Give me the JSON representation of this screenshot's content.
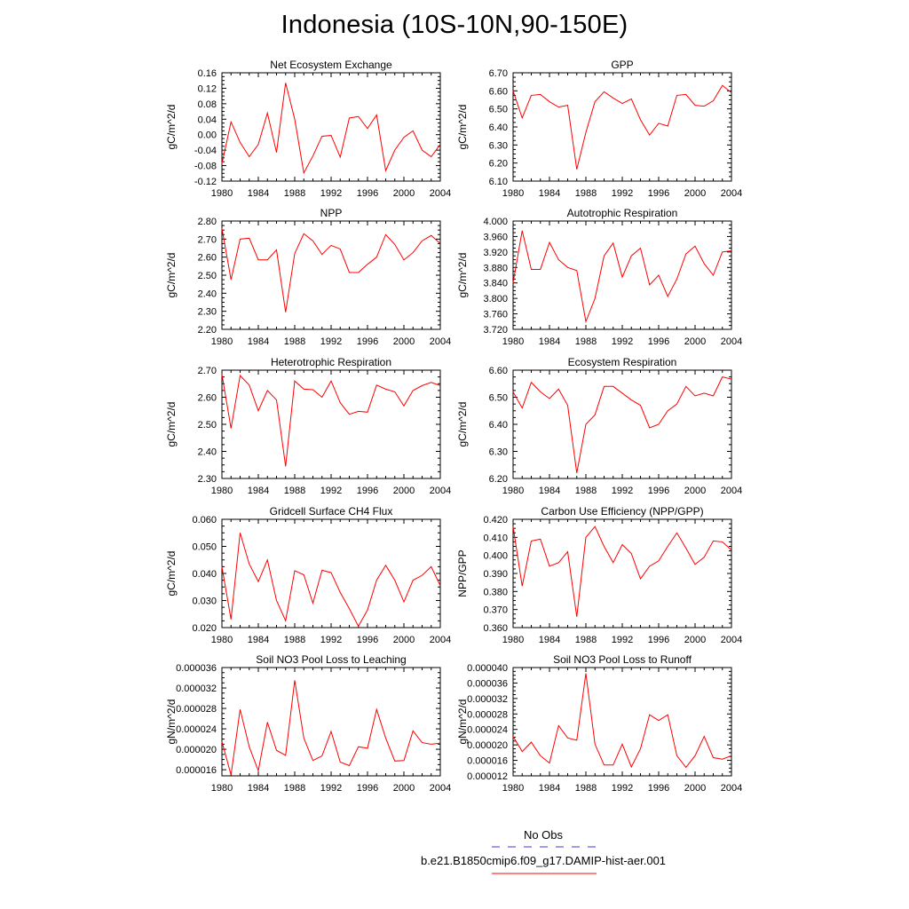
{
  "page": {
    "title": "Indonesia (10S-10N,90-150E)"
  },
  "legend": {
    "items": [
      {
        "label": "No Obs",
        "color": "#3b3bd6",
        "style": "dashed"
      },
      {
        "label": "b.e21.B1850cmip6.f09_g17.DAMIP-hist-aer.001",
        "color": "#ff0000",
        "style": "solid"
      }
    ]
  },
  "chart_data": [
    {
      "type": "line",
      "title": "Net Ecosystem Exchange",
      "xlabel": "",
      "ylabel": "gC/m^2/d",
      "xlim": [
        1980,
        2004
      ],
      "ylim": [
        -0.12,
        0.16
      ],
      "yticks": [
        "-0.12",
        "-0.08",
        "-0.04",
        "0.00",
        "0.04",
        "0.08",
        "0.12",
        "0.16"
      ],
      "xticks": [
        "1980",
        "1984",
        "1988",
        "1992",
        "1996",
        "2000",
        "2004"
      ],
      "x": [
        1980,
        1981,
        1982,
        1983,
        1984,
        1985,
        1986,
        1987,
        1988,
        1989,
        1990,
        1991,
        1992,
        1993,
        1994,
        1995,
        1996,
        1997,
        1998,
        1999,
        2000,
        2001,
        2002,
        2003,
        2004
      ],
      "series": [
        {
          "color": "#ff0000",
          "values": [
            -0.075,
            0.033,
            -0.02,
            -0.057,
            -0.025,
            0.056,
            -0.046,
            0.134,
            0.04,
            -0.099,
            -0.055,
            -0.004,
            -0.002,
            -0.058,
            0.043,
            0.047,
            0.016,
            0.051,
            -0.093,
            -0.04,
            -0.007,
            0.01,
            -0.04,
            -0.057,
            -0.025
          ]
        }
      ]
    },
    {
      "type": "line",
      "title": "GPP",
      "xlabel": "",
      "ylabel": "gC/m^2/d",
      "xlim": [
        1980,
        2004
      ],
      "ylim": [
        6.1,
        6.7
      ],
      "yticks": [
        "6.10",
        "6.20",
        "6.30",
        "6.40",
        "6.50",
        "6.60",
        "6.70"
      ],
      "xticks": [
        "1980",
        "1984",
        "1988",
        "1992",
        "1996",
        "2000",
        "2004"
      ],
      "x": [
        1980,
        1981,
        1982,
        1983,
        1984,
        1985,
        1986,
        1987,
        1988,
        1989,
        1990,
        1991,
        1992,
        1993,
        1994,
        1995,
        1996,
        1997,
        1998,
        1999,
        2000,
        2001,
        2002,
        2003,
        2004
      ],
      "series": [
        {
          "color": "#ff0000",
          "values": [
            6.6,
            6.45,
            6.575,
            6.58,
            6.54,
            6.51,
            6.52,
            6.165,
            6.37,
            6.54,
            6.595,
            6.56,
            6.53,
            6.555,
            6.44,
            6.355,
            6.42,
            6.405,
            6.575,
            6.58,
            6.52,
            6.515,
            6.545,
            6.63,
            6.59
          ]
        }
      ]
    },
    {
      "type": "line",
      "title": "NPP",
      "xlabel": "",
      "ylabel": "gC/m^2/d",
      "xlim": [
        1980,
        2004
      ],
      "ylim": [
        2.2,
        2.8
      ],
      "yticks": [
        "2.20",
        "2.30",
        "2.40",
        "2.50",
        "2.60",
        "2.70",
        "2.80"
      ],
      "xticks": [
        "1980",
        "1984",
        "1988",
        "1992",
        "1996",
        "2000",
        "2004"
      ],
      "x": [
        1980,
        1981,
        1982,
        1983,
        1984,
        1985,
        1986,
        1987,
        1988,
        1989,
        1990,
        1991,
        1992,
        1993,
        1994,
        1995,
        1996,
        1997,
        1998,
        1999,
        2000,
        2001,
        2002,
        2003,
        2004
      ],
      "series": [
        {
          "color": "#ff0000",
          "values": [
            2.76,
            2.475,
            2.7,
            2.705,
            2.585,
            2.585,
            2.64,
            2.295,
            2.62,
            2.73,
            2.69,
            2.615,
            2.665,
            2.645,
            2.515,
            2.515,
            2.56,
            2.6,
            2.725,
            2.67,
            2.585,
            2.625,
            2.69,
            2.72,
            2.675
          ]
        }
      ]
    },
    {
      "type": "line",
      "title": "Autotrophic Respiration",
      "xlabel": "",
      "ylabel": "gC/m^2/d",
      "xlim": [
        1980,
        2004
      ],
      "ylim": [
        3.72,
        4.0
      ],
      "yticks": [
        "3.720",
        "3.760",
        "3.800",
        "3.840",
        "3.880",
        "3.920",
        "3.960",
        "4.000"
      ],
      "xticks": [
        "1980",
        "1984",
        "1988",
        "1992",
        "1996",
        "2000",
        "2004"
      ],
      "x": [
        1980,
        1981,
        1982,
        1983,
        1984,
        1985,
        1986,
        1987,
        1988,
        1989,
        1990,
        1991,
        1992,
        1993,
        1994,
        1995,
        1996,
        1997,
        1998,
        1999,
        2000,
        2001,
        2002,
        2003,
        2004
      ],
      "series": [
        {
          "color": "#ff0000",
          "values": [
            3.84,
            3.975,
            3.875,
            3.875,
            3.945,
            3.9,
            3.88,
            3.872,
            3.74,
            3.8,
            3.91,
            3.943,
            3.855,
            3.91,
            3.93,
            3.835,
            3.86,
            3.805,
            3.85,
            3.915,
            3.935,
            3.89,
            3.86,
            3.92,
            3.923
          ]
        }
      ]
    },
    {
      "type": "line",
      "title": "Heterotrophic Respiration",
      "xlabel": "",
      "ylabel": "gC/m^2/d",
      "xlim": [
        1980,
        2004
      ],
      "ylim": [
        2.3,
        2.7
      ],
      "yticks": [
        "2.30",
        "2.40",
        "2.50",
        "2.60",
        "2.70"
      ],
      "xticks": [
        "1980",
        "1984",
        "1988",
        "1992",
        "1996",
        "2000",
        "2004"
      ],
      "x": [
        1980,
        1981,
        1982,
        1983,
        1984,
        1985,
        1986,
        1987,
        1988,
        1989,
        1990,
        1991,
        1992,
        1993,
        1994,
        1995,
        1996,
        1997,
        1998,
        1999,
        2000,
        2001,
        2002,
        2003,
        2004
      ],
      "series": [
        {
          "color": "#ff0000",
          "values": [
            2.685,
            2.485,
            2.68,
            2.645,
            2.55,
            2.625,
            2.59,
            2.345,
            2.66,
            2.63,
            2.628,
            2.6,
            2.66,
            2.58,
            2.537,
            2.548,
            2.545,
            2.645,
            2.63,
            2.62,
            2.568,
            2.625,
            2.643,
            2.655,
            2.643
          ]
        }
      ]
    },
    {
      "type": "line",
      "title": "Ecosystem Respiration",
      "xlabel": "",
      "ylabel": "gC/m^2/d",
      "xlim": [
        1980,
        2004
      ],
      "ylim": [
        6.2,
        6.6
      ],
      "yticks": [
        "6.20",
        "6.30",
        "6.40",
        "6.50",
        "6.60"
      ],
      "xticks": [
        "1980",
        "1984",
        "1988",
        "1992",
        "1996",
        "2000",
        "2004"
      ],
      "x": [
        1980,
        1981,
        1982,
        1983,
        1984,
        1985,
        1986,
        1987,
        1988,
        1989,
        1990,
        1991,
        1992,
        1993,
        1994,
        1995,
        1996,
        1997,
        1998,
        1999,
        2000,
        2001,
        2002,
        2003,
        2004
      ],
      "series": [
        {
          "color": "#ff0000",
          "values": [
            6.52,
            6.46,
            6.555,
            6.52,
            6.495,
            6.53,
            6.47,
            6.22,
            6.4,
            6.435,
            6.54,
            6.54,
            6.515,
            6.49,
            6.47,
            6.387,
            6.4,
            6.45,
            6.475,
            6.54,
            6.505,
            6.515,
            6.505,
            6.575,
            6.567
          ]
        }
      ]
    },
    {
      "type": "line",
      "title": "Gridcell Surface CH4 Flux",
      "xlabel": "",
      "ylabel": "gC/m^2/d",
      "xlim": [
        1980,
        2004
      ],
      "ylim": [
        0.02,
        0.06
      ],
      "yticks": [
        "0.020",
        "0.030",
        "0.040",
        "0.050",
        "0.060"
      ],
      "xticks": [
        "1980",
        "1984",
        "1988",
        "1992",
        "1996",
        "2000",
        "2004"
      ],
      "x": [
        1980,
        1981,
        1982,
        1983,
        1984,
        1985,
        1986,
        1987,
        1988,
        1989,
        1990,
        1991,
        1992,
        1993,
        1994,
        1995,
        1996,
        1997,
        1998,
        1999,
        2000,
        2001,
        2002,
        2003,
        2004
      ],
      "series": [
        {
          "color": "#ff0000",
          "values": [
            0.0425,
            0.023,
            0.055,
            0.0435,
            0.037,
            0.045,
            0.03,
            0.0225,
            0.041,
            0.0395,
            0.029,
            0.0412,
            0.0403,
            0.033,
            0.027,
            0.0205,
            0.0265,
            0.0375,
            0.043,
            0.0375,
            0.0295,
            0.0375,
            0.0393,
            0.0425,
            0.0355
          ]
        }
      ]
    },
    {
      "type": "line",
      "title": "Carbon Use Efficiency (NPP/GPP)",
      "xlabel": "",
      "ylabel": "NPP/GPP",
      "xlim": [
        1980,
        2004
      ],
      "ylim": [
        0.36,
        0.42
      ],
      "yticks": [
        "0.360",
        "0.370",
        "0.380",
        "0.390",
        "0.400",
        "0.410",
        "0.420"
      ],
      "xticks": [
        "1980",
        "1984",
        "1988",
        "1992",
        "1996",
        "2000",
        "2004"
      ],
      "x": [
        1980,
        1981,
        1982,
        1983,
        1984,
        1985,
        1986,
        1987,
        1988,
        1989,
        1990,
        1991,
        1992,
        1993,
        1994,
        1995,
        1996,
        1997,
        1998,
        1999,
        2000,
        2001,
        2002,
        2003,
        2004
      ],
      "series": [
        {
          "color": "#ff0000",
          "values": [
            0.416,
            0.383,
            0.408,
            0.409,
            0.394,
            0.396,
            0.402,
            0.366,
            0.41,
            0.416,
            0.405,
            0.396,
            0.406,
            0.401,
            0.387,
            0.394,
            0.397,
            0.405,
            0.4125,
            0.404,
            0.395,
            0.399,
            0.408,
            0.4075,
            0.403
          ]
        }
      ]
    },
    {
      "type": "line",
      "title": "Soil NO3 Pool Loss to Leaching",
      "xlabel": "",
      "ylabel": "gN/m^2/d",
      "xlim": [
        1980,
        2004
      ],
      "ylim": [
        1.48e-05,
        3.6e-05
      ],
      "yticks": [
        "0.000016",
        "0.000020",
        "0.000024",
        "0.000028",
        "0.000032",
        "0.000036"
      ],
      "xticks": [
        "1980",
        "1984",
        "1988",
        "1992",
        "1996",
        "2000",
        "2004"
      ],
      "x": [
        1980,
        1981,
        1982,
        1983,
        1984,
        1985,
        1986,
        1987,
        1988,
        1989,
        1990,
        1991,
        1992,
        1993,
        1994,
        1995,
        1996,
        1997,
        1998,
        1999,
        2000,
        2001,
        2002,
        2003,
        2004
      ],
      "series": [
        {
          "color": "#ff0000",
          "values": [
            2.15e-05,
            1.5e-05,
            2.78e-05,
            2.05e-05,
            1.58e-05,
            2.53e-05,
            1.98e-05,
            1.88e-05,
            3.35e-05,
            2.22e-05,
            1.78e-05,
            1.87e-05,
            2.35e-05,
            1.75e-05,
            1.68e-05,
            2.05e-05,
            2.02e-05,
            2.78e-05,
            2.22e-05,
            1.77e-05,
            1.78e-05,
            2.36e-05,
            2.13e-05,
            2.1e-05,
            2.12e-05
          ]
        }
      ]
    },
    {
      "type": "line",
      "title": "Soil NO3 Pool Loss to Runoff",
      "xlabel": "",
      "ylabel": "gN/m^2/d",
      "xlim": [
        1980,
        2004
      ],
      "ylim": [
        1.2e-05,
        4e-05
      ],
      "yticks": [
        "0.000012",
        "0.000016",
        "0.000020",
        "0.000024",
        "0.000028",
        "0.000032",
        "0.000036",
        "0.000040"
      ],
      "xticks": [
        "1980",
        "1984",
        "1988",
        "1992",
        "1996",
        "2000",
        "2004"
      ],
      "x": [
        1980,
        1981,
        1982,
        1983,
        1984,
        1985,
        1986,
        1987,
        1988,
        1989,
        1990,
        1991,
        1992,
        1993,
        1994,
        1995,
        1996,
        1997,
        1998,
        1999,
        2000,
        2001,
        2002,
        2003,
        2004
      ],
      "series": [
        {
          "color": "#ff0000",
          "values": [
            2.22e-05,
            1.83e-05,
            2.07e-05,
            1.72e-05,
            1.53e-05,
            2.5e-05,
            2.18e-05,
            2.12e-05,
            3.85e-05,
            2.02e-05,
            1.48e-05,
            1.48e-05,
            2.02e-05,
            1.43e-05,
            1.9e-05,
            2.78e-05,
            2.63e-05,
            2.78e-05,
            1.72e-05,
            1.42e-05,
            1.72e-05,
            2.22e-05,
            1.67e-05,
            1.63e-05,
            1.72e-05
          ]
        }
      ]
    }
  ]
}
